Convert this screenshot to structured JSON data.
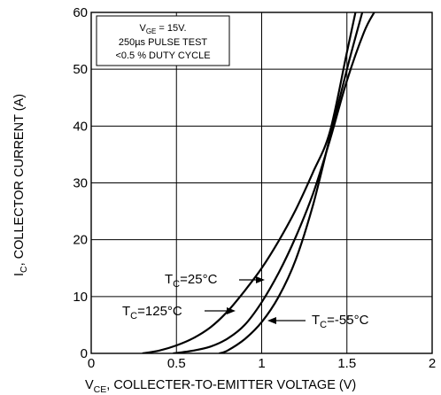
{
  "chart_data": {
    "type": "line",
    "title": "",
    "xlabel": "V_CE, COLLECTER-TO-EMITTER VOLTAGE (V)",
    "ylabel": "I_C, COLLECTOR CURRENT (A)",
    "xlim": [
      0,
      2
    ],
    "ylim": [
      0,
      60
    ],
    "xticks": [
      "0",
      "0.5",
      "1",
      "1.5",
      "2"
    ],
    "yticks": [
      "0",
      "10",
      "20",
      "30",
      "40",
      "50",
      "60"
    ],
    "grid": true,
    "legend_box": {
      "line1_main": "V",
      "line1_sub": "GE",
      "line1_rest": " = 15V.",
      "line2": "250µs PULSE TEST",
      "line3": "<0.5 % DUTY CYCLE",
      "placement": "top-left"
    },
    "series": [
      {
        "name": "T_C=25°C",
        "label_main": "T",
        "label_sub": "C",
        "label_rest": "=25°C",
        "x": [
          0.48,
          0.6,
          0.7,
          0.8,
          0.9,
          1.0,
          1.1,
          1.2,
          1.3,
          1.4,
          1.5,
          1.6,
          1.66
        ],
        "y": [
          0,
          0.5,
          1.2,
          2.6,
          5.0,
          9.0,
          14.2,
          20.5,
          28.0,
          37.5,
          48.0,
          56.5,
          60
        ]
      },
      {
        "name": "T_C=125°C",
        "label_main": "T",
        "label_sub": "C",
        "label_rest": "=125°C",
        "x": [
          0.3,
          0.4,
          0.5,
          0.6,
          0.7,
          0.8,
          0.9,
          1.0,
          1.1,
          1.2,
          1.3,
          1.4,
          1.5,
          1.55
        ],
        "y": [
          0,
          0.5,
          1.4,
          2.7,
          4.6,
          7.4,
          11.0,
          15.0,
          19.8,
          25.3,
          31.8,
          39.0,
          53.0,
          60
        ]
      },
      {
        "name": "T_C=-55°C",
        "label_main": "T",
        "label_sub": "C",
        "label_rest": "=-55°C",
        "x": [
          0.75,
          0.8,
          0.9,
          1.0,
          1.1,
          1.2,
          1.3,
          1.4,
          1.5,
          1.59
        ],
        "y": [
          0,
          0.5,
          2.5,
          5.5,
          10.0,
          16.5,
          26.0,
          38.0,
          50.0,
          60
        ]
      }
    ]
  }
}
